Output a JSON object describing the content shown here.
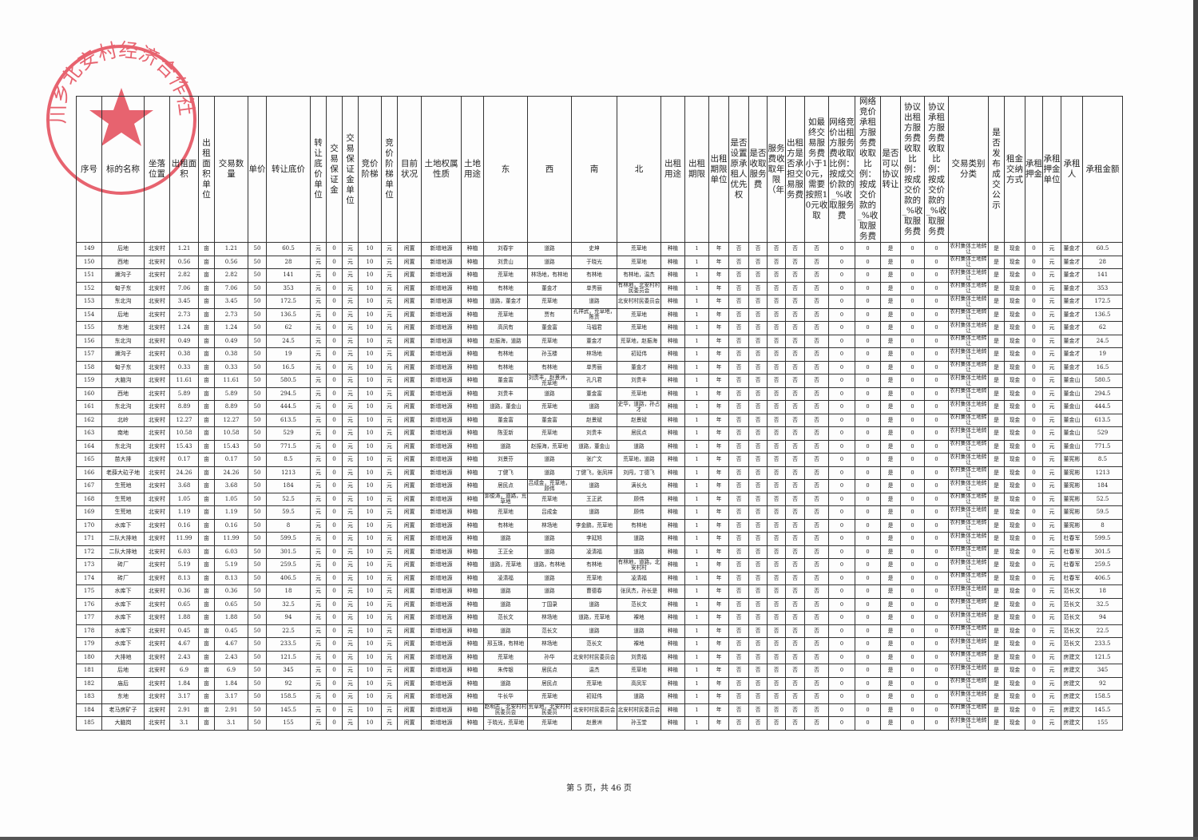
{
  "stamp_text": "川乡北安村经济合作社",
  "colors": {
    "stamp": "#e03040",
    "ink": "#222222"
  },
  "headers": [
    "序号",
    "标的名称",
    "坐落位置",
    "出租面积",
    "出租面积单位",
    "交易数量",
    "单价",
    "转让底价",
    "转让底价单位",
    "交易保证金",
    "交易保证金单位",
    "竞价阶梯",
    "竞价阶梯单位",
    "目前状况",
    "土地权属性质",
    "土地用途",
    "东",
    "西",
    "南",
    "北",
    "出租用途",
    "出租期限",
    "出租期限单位",
    "是否设置原承租人优先权",
    "是否收取服务费",
    "服务费收取年限（年）",
    "出租方是否承担交易服务费",
    "如最终交易服务费小于10元，需要按照10元收取",
    "网络竞价出租方服务费收取比例：按成交价款的_%收取服务费",
    "网络竞价承租方服务费收取比例：按成交价款的_%收取服务费",
    "是否可以协议转让",
    "协议出租方服务费收取比例：按成交价款的_%收取服务费",
    "协议承租方服务费收取比例：按成交价款的_%收取服务费",
    "交易类别分类",
    "是否发布成交公示",
    "租金交纳方式",
    "承租押金",
    "承租押金单位",
    "承租人",
    "承租金额"
  ],
  "constants": {
    "village": "北安村",
    "area_unit": "亩",
    "unit_price": "50",
    "yuan": "元",
    "zero": "0",
    "step": "10",
    "status": "闲置",
    "nature": "新增地源",
    "use": "种植",
    "period": "1",
    "year": "年",
    "no": "否",
    "yes": "是",
    "category": "农村集体土地转让",
    "payment": "现金"
  },
  "rows": [
    {
      "no": "149",
      "name": "后地",
      "area": "1.21",
      "price": "60.5",
      "e": "刘春宇",
      "w": "道路",
      "s": "史坤",
      "n": "荒草地",
      "tenant": "董金才"
    },
    {
      "no": "150",
      "name": "西地",
      "area": "0.56",
      "price": "28",
      "e": "刘贵山",
      "w": "道路",
      "s": "于晓光",
      "n": "荒草地",
      "tenant": "董金才"
    },
    {
      "no": "151",
      "name": "濑沟子",
      "area": "2.82",
      "price": "141",
      "e": "荒草地",
      "w": "林场地，有林地",
      "s": "有林地",
      "n": "有林地，温杰",
      "tenant": "董金才"
    },
    {
      "no": "152",
      "name": "甸子东",
      "area": "7.06",
      "price": "353",
      "e": "有林地",
      "w": "董金才",
      "s": "单秀丽",
      "n": "有林地，北安村村民委员会",
      "tenant": "董金才"
    },
    {
      "no": "153",
      "name": "东北沟",
      "area": "3.45",
      "price": "172.5",
      "e": "道路，董金才",
      "w": "荒草地",
      "s": "道路",
      "n": "北安村村民委员会",
      "tenant": "董金才"
    },
    {
      "no": "154",
      "name": "后地",
      "area": "2.73",
      "price": "136.5",
      "e": "荒草地",
      "w": "贾有",
      "s": "孔祥武，荒草地，陈贵",
      "n": "荒草地",
      "tenant": "董金才"
    },
    {
      "no": "155",
      "name": "东地",
      "area": "1.24",
      "price": "62",
      "e": "高凤有",
      "w": "董金富",
      "s": "马福君",
      "n": "荒草地",
      "tenant": "董金才"
    },
    {
      "no": "156",
      "name": "东北沟",
      "area": "0.49",
      "price": "24.5",
      "e": "赵振海，道路",
      "w": "荒草地",
      "s": "董金才",
      "n": "荒草地，赵振海",
      "tenant": "董金才"
    },
    {
      "no": "157",
      "name": "濑沟子",
      "area": "0.38",
      "price": "19",
      "e": "有林地",
      "w": "孙玉楼",
      "s": "林场地",
      "n": "初延伟",
      "tenant": "董金才"
    },
    {
      "no": "158",
      "name": "甸子东",
      "area": "0.33",
      "price": "16.5",
      "e": "有林地",
      "w": "有林地",
      "s": "单秀丽",
      "n": "董金才",
      "tenant": "董金才"
    },
    {
      "no": "159",
      "name": "大脑沟",
      "area": "11.61",
      "price": "580.5",
      "e": "董金富",
      "w": "刘贵丰，赵景洲，荒草地",
      "s": "孔凡君",
      "n": "刘贵丰",
      "tenant": "董金山"
    },
    {
      "no": "160",
      "name": "西地",
      "area": "5.89",
      "price": "294.5",
      "e": "刘贵丰",
      "w": "道路",
      "s": "董金富",
      "n": "荒草地",
      "tenant": "董金山"
    },
    {
      "no": "161",
      "name": "东北沟",
      "area": "8.89",
      "price": "444.5",
      "e": "道路，董金山",
      "w": "荒草地",
      "s": "道路",
      "n": "史华，道路，孙占才",
      "tenant": "董金山"
    },
    {
      "no": "162",
      "name": "北岭",
      "area": "12.27",
      "price": "613.5",
      "e": "董金富",
      "w": "董金富",
      "s": "赵景斌",
      "n": "赵景斌",
      "tenant": "董金山"
    },
    {
      "no": "163",
      "name": "南地",
      "area": "10.58",
      "price": "529",
      "e": "陈亚新",
      "w": "荒草地",
      "s": "刘贵丰",
      "n": "居民点",
      "tenant": "董金山"
    },
    {
      "no": "164",
      "name": "东北沟",
      "area": "15.43",
      "price": "771.5",
      "e": "道路",
      "w": "赵振海，荒草地",
      "s": "道路，董金山",
      "n": "道路",
      "tenant": "董金山"
    },
    {
      "no": "165",
      "name": "苗大排",
      "area": "0.17",
      "price": "8.5",
      "e": "刘景芬",
      "w": "道路",
      "s": "张广文",
      "n": "荒草地，道路",
      "tenant": "董宪彬"
    },
    {
      "no": "166",
      "name": "老薛大砬子地",
      "area": "24.26",
      "price": "1213",
      "e": "丁健飞",
      "w": "道路",
      "s": "丁健飞，张凤祥",
      "n": "刘闯，丁德飞",
      "tenant": "董宪彬"
    },
    {
      "no": "167",
      "name": "生荒地",
      "area": "3.68",
      "price": "184",
      "e": "居民点",
      "w": "吕成金，荒草地，顾伟",
      "s": "道路",
      "n": "满长允",
      "tenant": "董宪彬"
    },
    {
      "no": "168",
      "name": "生荒地",
      "area": "1.05",
      "price": "52.5",
      "e": "郭俊涛，道路，荒草地",
      "w": "荒草地",
      "s": "王正武",
      "n": "顾伟",
      "tenant": "董宪彬"
    },
    {
      "no": "169",
      "name": "生荒地",
      "area": "1.19",
      "price": "59.5",
      "e": "荒草地",
      "w": "吕成金",
      "s": "道路",
      "n": "顾伟",
      "tenant": "董宪彬"
    },
    {
      "no": "170",
      "name": "水库下",
      "area": "0.16",
      "price": "8",
      "e": "有林地",
      "w": "林场地",
      "s": "李金鹏，荒草地",
      "n": "有林地",
      "tenant": "董宪彬"
    },
    {
      "no": "171",
      "name": "二队大排地",
      "area": "11.99",
      "price": "599.5",
      "e": "道路",
      "w": "道路",
      "s": "李延旭",
      "n": "道路",
      "tenant": "杜春军"
    },
    {
      "no": "172",
      "name": "二队大排地",
      "area": "6.03",
      "price": "301.5",
      "e": "王正全",
      "w": "道路",
      "s": "凌清福",
      "n": "道路",
      "tenant": "杜春军"
    },
    {
      "no": "173",
      "name": "砖厂",
      "area": "5.19",
      "price": "259.5",
      "e": "道路，荒草地",
      "w": "道路，有林地",
      "s": "有林地",
      "n": "有林地，道路，北安村村",
      "tenant": "杜春军"
    },
    {
      "no": "174",
      "name": "砖厂",
      "area": "8.13",
      "price": "406.5",
      "e": "凌清福",
      "w": "道路",
      "s": "荒草地",
      "n": "凌清福",
      "tenant": "杜春军"
    },
    {
      "no": "175",
      "name": "水库下",
      "area": "0.36",
      "price": "18",
      "e": "道路",
      "w": "道路",
      "s": "曹德春",
      "n": "张凤杰，孙长是",
      "tenant": "范长文"
    },
    {
      "no": "176",
      "name": "水库下",
      "area": "0.65",
      "price": "32.5",
      "e": "道路",
      "w": "丁国录",
      "s": "道路",
      "n": "范长文",
      "tenant": "范长文"
    },
    {
      "no": "177",
      "name": "水库下",
      "area": "1.88",
      "price": "94",
      "e": "范长文",
      "w": "林场地",
      "s": "道路，荒草地",
      "n": "裸地",
      "tenant": "范长文"
    },
    {
      "no": "178",
      "name": "水库下",
      "area": "0.45",
      "price": "22.5",
      "e": "道路",
      "w": "范长文",
      "s": "道路",
      "n": "道路",
      "tenant": "范长文"
    },
    {
      "no": "179",
      "name": "水库下",
      "area": "4.67",
      "price": "233.5",
      "e": "邢玉珠，有林地",
      "w": "林场地",
      "s": "范长文",
      "n": "裸地",
      "tenant": "范长文"
    },
    {
      "no": "180",
      "name": "大排地",
      "area": "2.43",
      "price": "121.5",
      "e": "荒草地",
      "w": "孙华",
      "s": "北安村村民委员会",
      "n": "刘贵福",
      "tenant": "房建文"
    },
    {
      "no": "181",
      "name": "后地",
      "area": "6.9",
      "price": "345",
      "e": "朱传银",
      "w": "居民点",
      "s": "温杰",
      "n": "荒草地",
      "tenant": "房建文"
    },
    {
      "no": "182",
      "name": "庙后",
      "area": "1.84",
      "price": "92",
      "e": "道路",
      "w": "居民点",
      "s": "荒草地",
      "n": "高凤军",
      "tenant": "房建文"
    },
    {
      "no": "183",
      "name": "东地",
      "area": "3.17",
      "price": "158.5",
      "e": "牛长华",
      "w": "荒草地",
      "s": "初延伟",
      "n": "道路",
      "tenant": "房建文"
    },
    {
      "no": "184",
      "name": "老马房矿子",
      "area": "2.91",
      "price": "145.5",
      "e": "赵明志，北安村村民委员会",
      "w": "荒草地，北安村村民委员",
      "s": "北安村村民委员会",
      "n": "北安村村民委员会",
      "tenant": "房建文"
    },
    {
      "no": "185",
      "name": "大脑岗",
      "area": "3.1",
      "price": "155",
      "e": "于晓光，荒草地",
      "w": "荒草地",
      "s": "赵景洲",
      "n": "孙玉堂",
      "tenant": "房建文"
    }
  ],
  "footer": {
    "page_info": "第 5 页，共 46 页"
  }
}
